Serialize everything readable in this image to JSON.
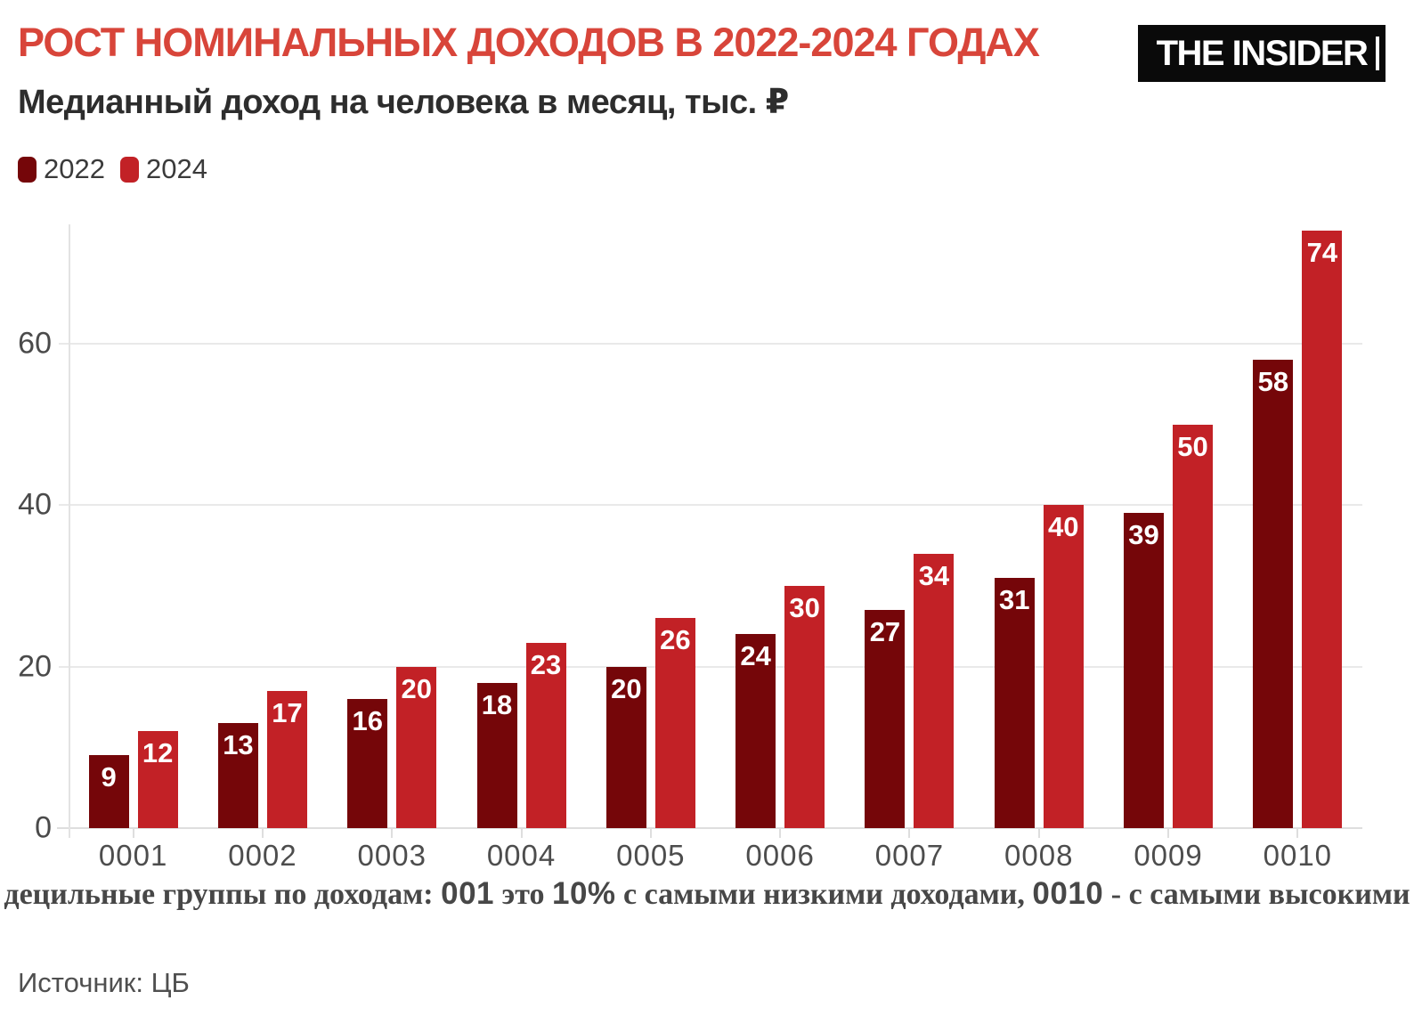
{
  "header": {
    "title": "РОСТ НОМИНАЛЬНЫХ ДОХОДОВ В 2022-2024 ГОДАХ",
    "subtitle": "Медианный доход на человека в месяц, тыс. ₽",
    "logo_text": "THE INSIDER"
  },
  "colors": {
    "title_red": "#d8453a",
    "bar_2022": "#750609",
    "bar_2024": "#c22126",
    "gridline": "#e9e9e9",
    "axis_text": "#4a4a4a",
    "value_label": "#ffffff",
    "logo_bg": "#0a0a0a",
    "logo_text": "#ffffff"
  },
  "legend": [
    {
      "label": "2022",
      "color": "#750609"
    },
    {
      "label": "2024",
      "color": "#c22126"
    }
  ],
  "chart_data": {
    "type": "bar",
    "title": "РОСТ НОМИНАЛЬНЫХ ДОХОДОВ В 2022-2024 ГОДАХ",
    "subtitle": "Медианный доход на человека в месяц, тыс. ₽",
    "categories": [
      "0001",
      "0002",
      "0003",
      "0004",
      "0005",
      "0006",
      "0007",
      "0008",
      "0009",
      "0010"
    ],
    "series": [
      {
        "name": "2022",
        "color": "#750609",
        "values": [
          9,
          13,
          16,
          18,
          20,
          24,
          27,
          31,
          39,
          58
        ]
      },
      {
        "name": "2024",
        "color": "#c22126",
        "values": [
          12,
          17,
          20,
          23,
          26,
          30,
          34,
          40,
          50,
          74
        ]
      }
    ],
    "xlabel": "",
    "ylabel": "",
    "yticks": [
      0,
      20,
      40,
      60
    ],
    "ylim": [
      0,
      75
    ],
    "grid": "horizontal",
    "legend_position": "top-left",
    "value_labels": "inside-top"
  },
  "footnote": {
    "segments": [
      {
        "text": "децильные группы по доходам: ",
        "font": "serif"
      },
      {
        "text": "001",
        "font": "sans"
      },
      {
        "text": " это ",
        "font": "serif"
      },
      {
        "text": "10%",
        "font": "sans"
      },
      {
        "text": " с самыми низкими доходами, ",
        "font": "serif"
      },
      {
        "text": "0010",
        "font": "sans"
      },
      {
        "text": " - с самыми высокими",
        "font": "serif"
      }
    ]
  },
  "source": {
    "label": "Источник: ЦБ"
  }
}
